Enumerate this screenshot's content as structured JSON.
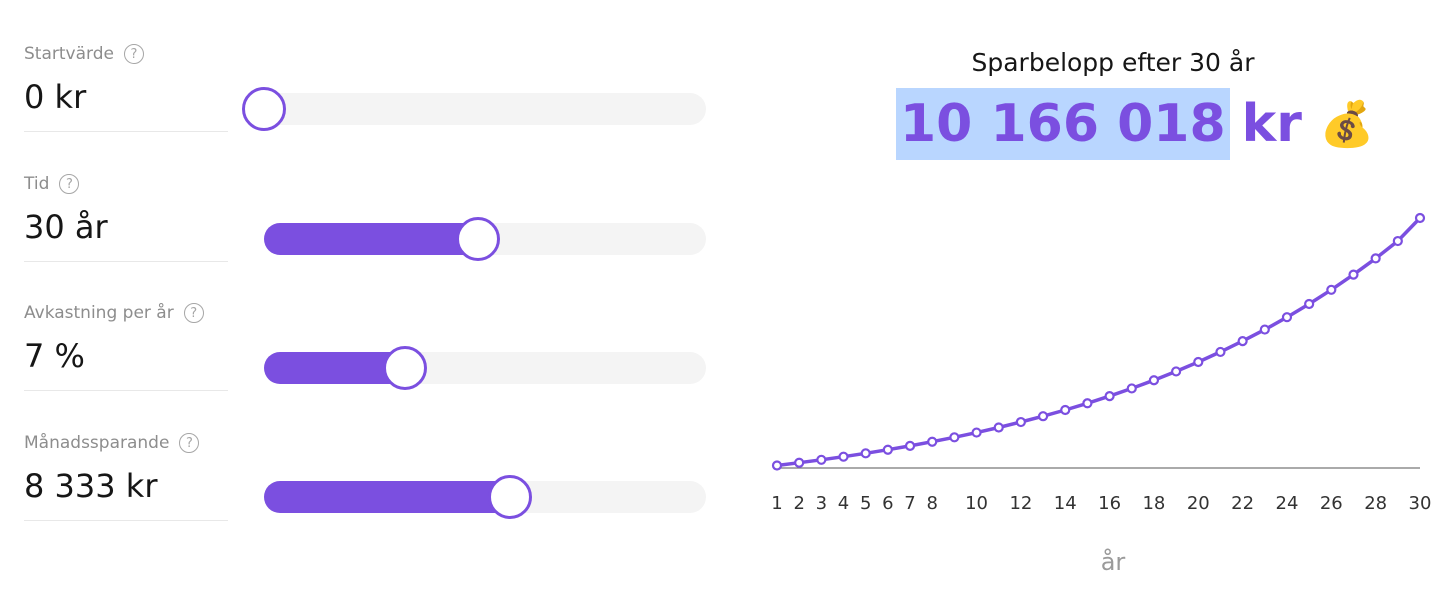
{
  "inputs": [
    {
      "label": "Startvärde",
      "value": "0 kr",
      "fraction": 0
    },
    {
      "label": "Tid",
      "value": "30 år",
      "fraction": 0.485
    },
    {
      "label": "Avkastning per år",
      "value": "7 %",
      "fraction": 0.318
    },
    {
      "label": "Månadssparande",
      "value": "8 333 kr",
      "fraction": 0.557
    }
  ],
  "help_icon": "?",
  "result": {
    "title": "Sparbelopp efter 30 år",
    "amount": "10 166 018",
    "unit": "kr",
    "icon": "💰"
  },
  "colors": {
    "accent": "#7b4fe0",
    "highlight": "#b9d6ff",
    "track": "#f4f4f4"
  },
  "chart_data": {
    "type": "line",
    "xlabel": "år",
    "x": [
      1,
      2,
      3,
      4,
      5,
      6,
      7,
      8,
      9,
      10,
      11,
      12,
      13,
      14,
      15,
      16,
      17,
      18,
      19,
      20,
      21,
      22,
      23,
      24,
      25,
      26,
      27,
      28,
      29,
      30
    ],
    "tick_labels": [
      "1",
      "2",
      "3",
      "4",
      "5",
      "6",
      "7",
      "8",
      "10",
      "12",
      "14",
      "16",
      "18",
      "20",
      "22",
      "24",
      "26",
      "28",
      "30"
    ],
    "series": [
      {
        "values": [
          103000,
          214000,
          333000,
          460000,
          597000,
          743000,
          900000,
          1068000,
          1248000,
          1441000,
          1648000,
          1869000,
          2106000,
          2360000,
          2632000,
          2923000,
          3235000,
          3569000,
          3927000,
          4310000,
          4720000,
          5159000,
          5629000,
          6132000,
          6670000,
          7246000,
          7863000,
          8523000,
          9229000,
          10166018
        ]
      }
    ],
    "ylim": [
      0,
      10166018
    ],
    "grid": false,
    "legend": "none"
  }
}
